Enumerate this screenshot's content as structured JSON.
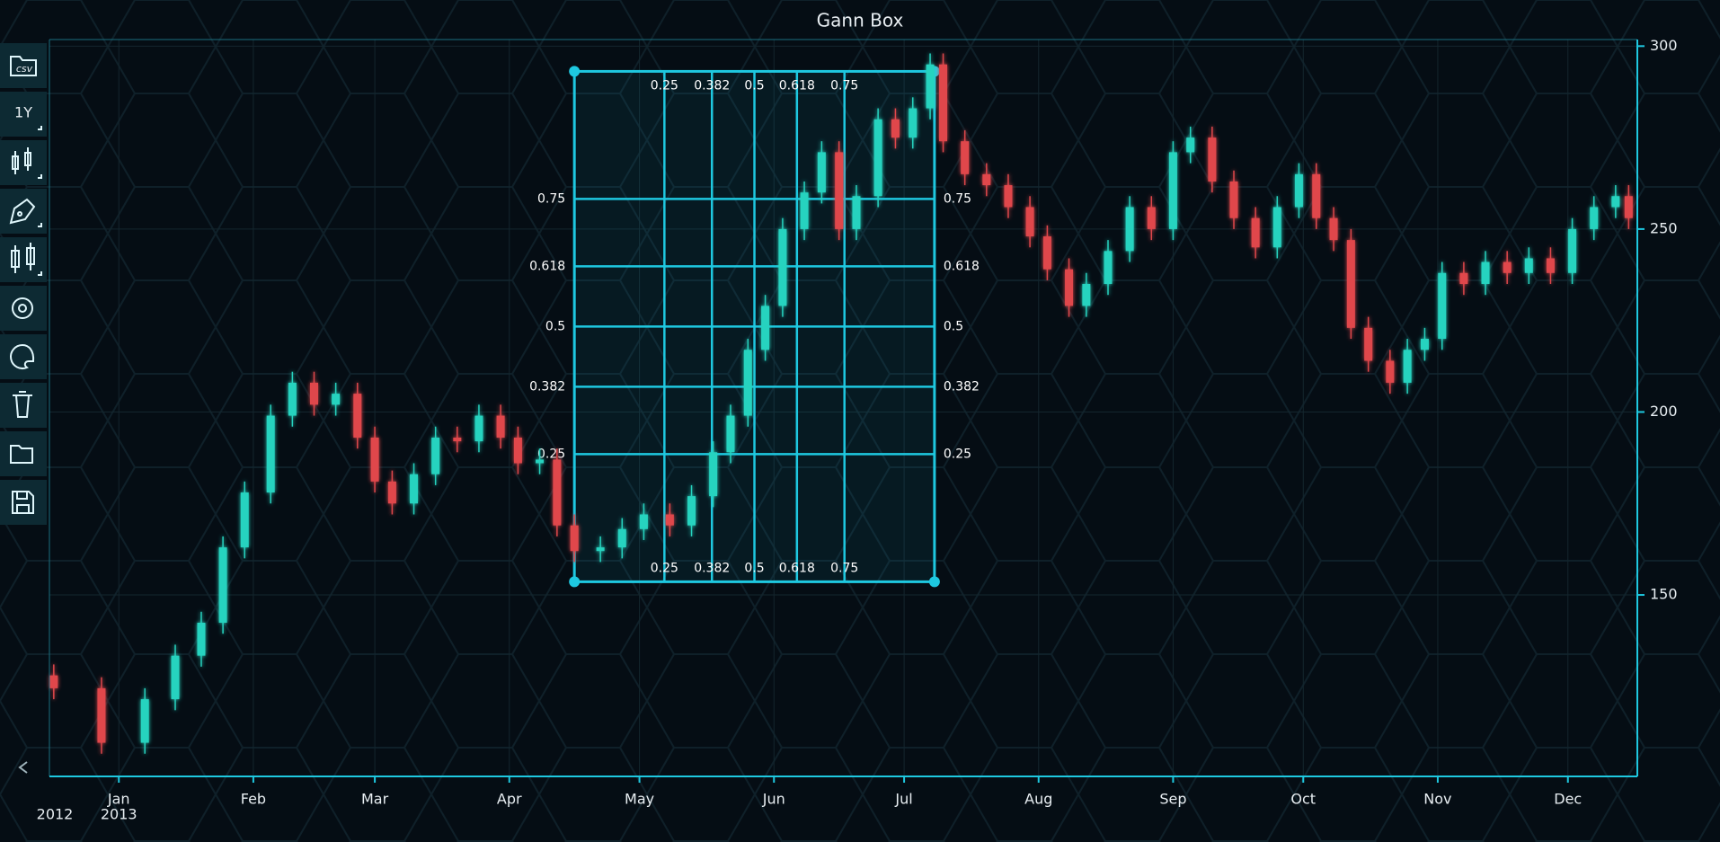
{
  "chart_data": {
    "type": "candlestick",
    "title": "Gann Box",
    "x": [
      "2012-12-17",
      "2012-12-28",
      "2013-01-07",
      "2013-01-14",
      "2013-01-20",
      "2013-01-25",
      "2013-01-30",
      "2013-02-05",
      "2013-02-10",
      "2013-02-15",
      "2013-02-20",
      "2013-02-25",
      "2013-03-01",
      "2013-03-05",
      "2013-03-10",
      "2013-03-15",
      "2013-03-20",
      "2013-03-25",
      "2013-03-30",
      "2013-04-03",
      "2013-04-08",
      "2013-04-12",
      "2013-04-16",
      "2013-04-22",
      "2013-04-27",
      "2013-05-02",
      "2013-05-08",
      "2013-05-13",
      "2013-05-18",
      "2013-05-22",
      "2013-05-26",
      "2013-05-30",
      "2013-06-03",
      "2013-06-08",
      "2013-06-12",
      "2013-06-16",
      "2013-06-20",
      "2013-06-25",
      "2013-06-29",
      "2013-07-03",
      "2013-07-07",
      "2013-07-10",
      "2013-07-15",
      "2013-07-20",
      "2013-07-25",
      "2013-07-30",
      "2013-08-03",
      "2013-08-08",
      "2013-08-12",
      "2013-08-17",
      "2013-08-22",
      "2013-08-27",
      "2013-09-01",
      "2013-09-05",
      "2013-09-10",
      "2013-09-15",
      "2013-09-20",
      "2013-09-25",
      "2013-09-30",
      "2013-10-04",
      "2013-10-08",
      "2013-10-12",
      "2013-10-16",
      "2013-10-21",
      "2013-10-25",
      "2013-10-29",
      "2013-11-02",
      "2013-11-07",
      "2013-11-12",
      "2013-11-17",
      "2013-11-22",
      "2013-11-27",
      "2013-12-02",
      "2013-12-07",
      "2013-12-12",
      "2013-12-15"
    ],
    "open": [
      128,
      124.5,
      109.6,
      121.5,
      133.4,
      142.4,
      163,
      178,
      199,
      208,
      202,
      205,
      193,
      181,
      175,
      183,
      193,
      192,
      199,
      193,
      186,
      187,
      169,
      162,
      163,
      168,
      172,
      169,
      177,
      189,
      199,
      217,
      229,
      250,
      260,
      271,
      250,
      259,
      280,
      275,
      283,
      295,
      274,
      265,
      262,
      256,
      248,
      239,
      229,
      235,
      244,
      256,
      250,
      271,
      275,
      263,
      253,
      245,
      256,
      265,
      253,
      247,
      223,
      214,
      208,
      217,
      220,
      238,
      235,
      241,
      238,
      242,
      238,
      250,
      256,
      259
    ],
    "high": [
      131,
      127.5,
      124.5,
      136.4,
      145.4,
      166,
      181,
      202,
      211,
      211,
      208,
      208,
      196,
      184,
      186,
      196,
      196,
      202,
      202,
      196,
      190,
      190,
      172,
      166,
      171,
      175,
      175,
      180,
      192,
      202,
      220,
      232,
      253,
      263,
      274,
      274,
      262,
      283,
      283,
      286,
      298,
      298,
      277,
      268,
      265,
      259,
      251,
      242,
      238,
      247,
      259,
      259,
      274,
      278,
      278,
      266,
      256,
      259,
      268,
      268,
      256,
      250,
      226,
      217,
      220,
      223,
      241,
      241,
      244,
      244,
      245,
      245,
      253,
      259,
      262,
      262
    ],
    "low": [
      121.5,
      106.6,
      106.6,
      118.5,
      130.4,
      139.4,
      160,
      175,
      196,
      199,
      199,
      190,
      178,
      172,
      172,
      180,
      189,
      189,
      190,
      183,
      183,
      166,
      159,
      159,
      160,
      165,
      166,
      166,
      174,
      186,
      196,
      214,
      226,
      247,
      257,
      247,
      247,
      256,
      272,
      272,
      280,
      271,
      262,
      259,
      253,
      245,
      236,
      226,
      226,
      232,
      241,
      247,
      247,
      268,
      260,
      250,
      242,
      242,
      253,
      250,
      244,
      220,
      211,
      205,
      205,
      214,
      217,
      232,
      232,
      235,
      235,
      235,
      235,
      247,
      253,
      250
    ],
    "close": [
      124.5,
      109.6,
      121.5,
      133.4,
      142.4,
      163,
      178,
      199,
      208,
      202,
      205,
      193,
      181,
      175,
      183,
      193,
      192,
      199,
      193,
      186,
      187,
      169,
      162,
      163,
      168,
      172,
      169,
      177,
      189,
      199,
      217,
      229,
      250,
      260,
      271,
      250,
      259,
      280,
      275,
      283,
      295,
      274,
      265,
      262,
      256,
      248,
      239,
      229,
      235,
      244,
      256,
      250,
      271,
      275,
      263,
      253,
      245,
      256,
      265,
      253,
      247,
      223,
      214,
      208,
      217,
      220,
      238,
      235,
      241,
      238,
      242,
      238,
      250,
      256,
      259,
      253
    ],
    "up_color": "#27d3bf",
    "down_color": "#e0474c",
    "xlim": [
      "2012-12-16",
      "2013-12-17"
    ],
    "ylim": [
      100.4,
      301.8
    ],
    "yticks": [
      150,
      200,
      250,
      300
    ],
    "xticks": [
      {
        "value": "2013-01-01",
        "label": "Jan"
      },
      {
        "value": "2013-02-01",
        "label": "Feb"
      },
      {
        "value": "2013-03-01",
        "label": "Mar"
      },
      {
        "value": "2013-04-01",
        "label": "Apr"
      },
      {
        "value": "2013-05-01",
        "label": "May"
      },
      {
        "value": "2013-06-01",
        "label": "Jun"
      },
      {
        "value": "2013-07-01",
        "label": "Jul"
      },
      {
        "value": "2013-08-01",
        "label": "Aug"
      },
      {
        "value": "2013-09-01",
        "label": "Sep"
      },
      {
        "value": "2013-10-01",
        "label": "Oct"
      },
      {
        "value": "2013-11-01",
        "label": "Nov"
      },
      {
        "value": "2013-12-01",
        "label": "Dec"
      }
    ],
    "year_ticks": [
      {
        "value": "2012-12-16",
        "label": "2012"
      },
      {
        "value": "2013-01-01",
        "label": "2013"
      }
    ],
    "grid": true,
    "gann_box": {
      "start": "2013-04-16",
      "end": "2013-07-08",
      "top": 293.1,
      "bottom": 153.6,
      "levels": [
        0.25,
        0.382,
        0.5,
        0.618,
        0.75
      ],
      "color": "#1ec8e0"
    }
  },
  "toolbar": {
    "csv_label": "csv",
    "range_button": "1Y"
  }
}
